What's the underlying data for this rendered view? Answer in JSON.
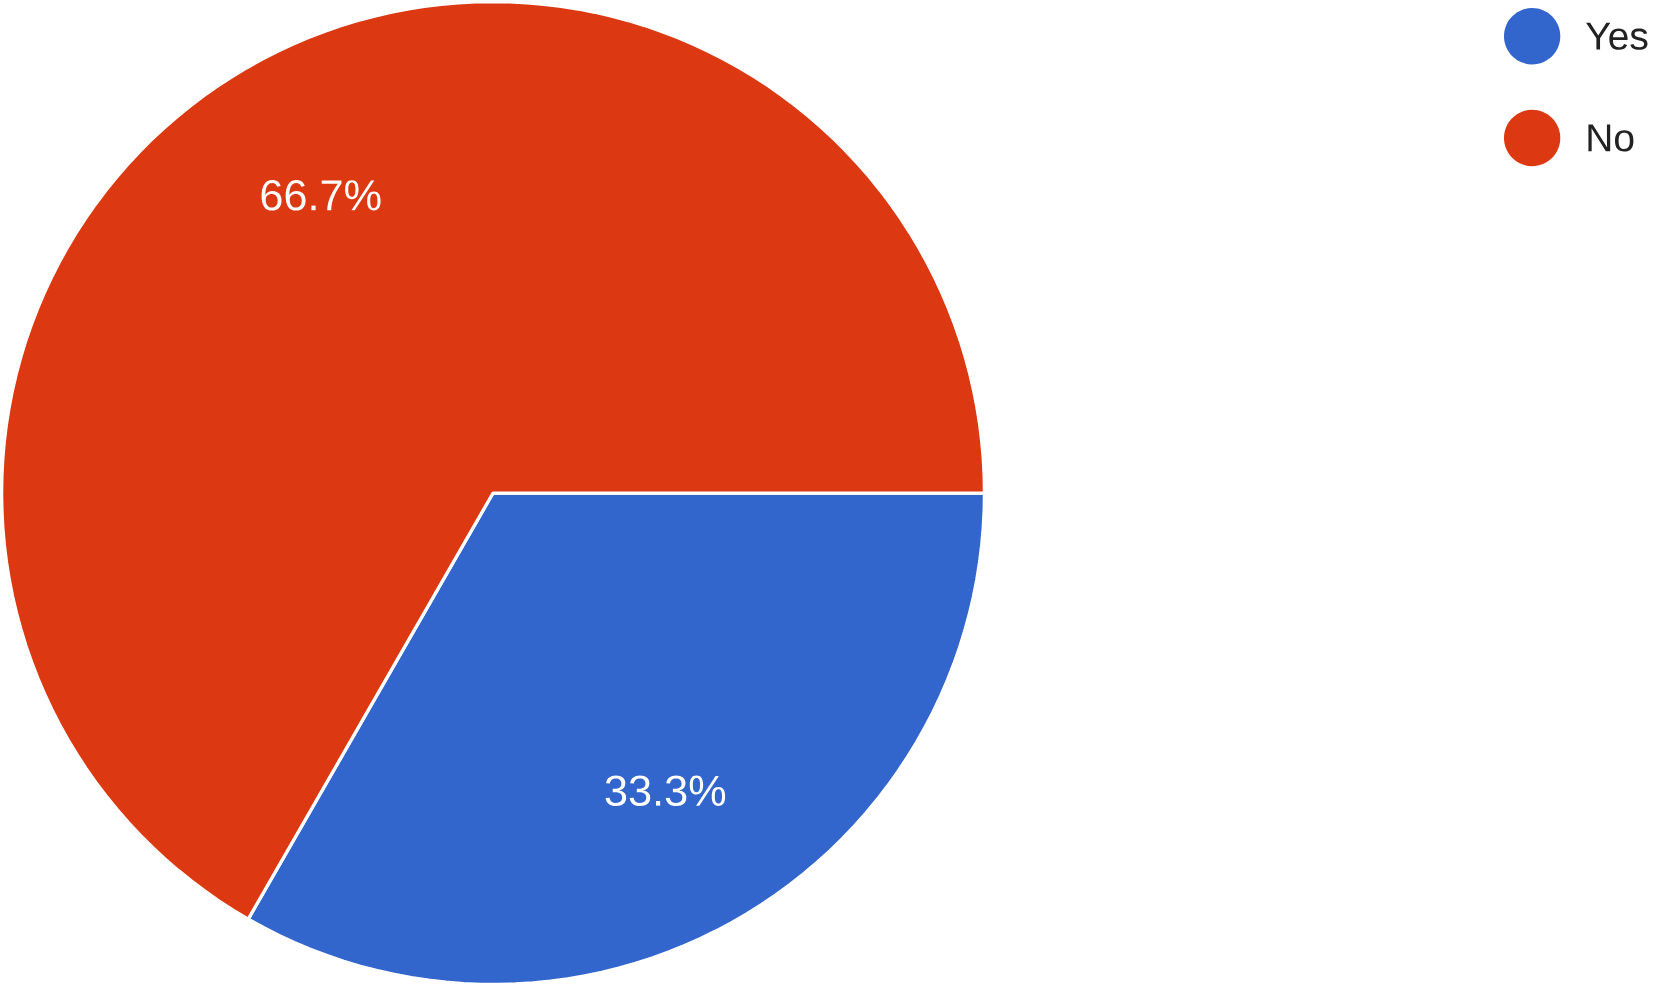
{
  "chart_data": {
    "type": "pie",
    "categories": [
      "Yes",
      "No"
    ],
    "values": [
      33.3,
      66.7
    ],
    "colors": [
      "#3366cc",
      "#dc3912"
    ],
    "value_labels": [
      "33.3%",
      "66.7%"
    ],
    "legend": "top right"
  }
}
